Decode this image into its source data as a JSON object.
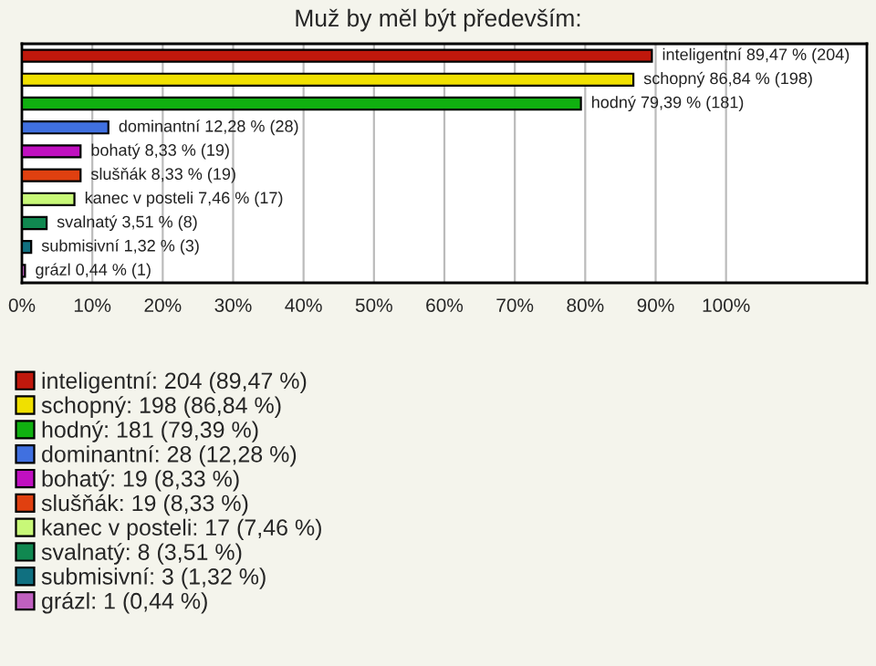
{
  "chart_data": {
    "type": "bar",
    "orientation": "horizontal",
    "title": "Muž by měl být především:",
    "categories": [
      null,
      null,
      null,
      null,
      null,
      null,
      null,
      null,
      null,
      null
    ],
    "series": [
      {
        "name": "inteligentní: 204 (89,47 %)",
        "color": "#c0180c",
        "values": [
          89.47,
          null,
          null,
          null,
          null,
          null,
          null,
          null,
          null,
          null
        ],
        "value_labels": [
          "inteligentní 89,47 % (204)",
          null,
          null,
          null,
          null,
          null,
          null,
          null,
          null,
          null
        ]
      },
      {
        "name": "schopný: 198 (86,84 %)",
        "color": "#f0e000",
        "values": [
          null,
          86.84,
          null,
          null,
          null,
          null,
          null,
          null,
          null,
          null
        ],
        "value_labels": [
          null,
          "schopný 86,84 % (198)",
          null,
          null,
          null,
          null,
          null,
          null,
          null,
          null
        ]
      },
      {
        "name": "hodný: 181 (79,39 %)",
        "color": "#10b010",
        "values": [
          null,
          null,
          79.39,
          null,
          null,
          null,
          null,
          null,
          null,
          null
        ],
        "value_labels": [
          null,
          null,
          "hodný 79,39 % (181)",
          null,
          null,
          null,
          null,
          null,
          null,
          null
        ]
      },
      {
        "name": "dominantní: 28 (12,28 %)",
        "color": "#4070e0",
        "values": [
          null,
          null,
          null,
          12.28,
          null,
          null,
          null,
          null,
          null,
          null
        ],
        "value_labels": [
          null,
          null,
          null,
          "dominantní 12,28 % (28)",
          null,
          null,
          null,
          null,
          null,
          null
        ]
      },
      {
        "name": "bohatý: 19 (8,33 %)",
        "color": "#c010c0",
        "values": [
          null,
          null,
          null,
          null,
          8.33,
          null,
          null,
          null,
          null,
          null
        ],
        "value_labels": [
          null,
          null,
          null,
          null,
          "bohatý 8,33 % (19)",
          null,
          null,
          null,
          null,
          null
        ]
      },
      {
        "name": "slušňák: 19 (8,33 %)",
        "color": "#e04010",
        "values": [
          null,
          null,
          null,
          null,
          null,
          8.33,
          null,
          null,
          null,
          null
        ],
        "value_labels": [
          null,
          null,
          null,
          null,
          null,
          "slušňák 8,33 % (19)",
          null,
          null,
          null,
          null
        ]
      },
      {
        "name": "kanec v posteli: 17 (7,46 %)",
        "color": "#c8f878",
        "values": [
          null,
          null,
          null,
          null,
          null,
          null,
          7.46,
          null,
          null,
          null
        ],
        "value_labels": [
          null,
          null,
          null,
          null,
          null,
          null,
          "kanec v posteli 7,46 % (17)",
          null,
          null,
          null
        ]
      },
      {
        "name": "svalnatý: 8 (3,51 %)",
        "color": "#108850",
        "values": [
          null,
          null,
          null,
          null,
          null,
          null,
          null,
          3.51,
          null,
          null
        ],
        "value_labels": [
          null,
          null,
          null,
          null,
          null,
          null,
          null,
          "svalnatý 3,51 % (8)",
          null,
          null
        ]
      },
      {
        "name": "submisivní: 3 (1,32 %)",
        "color": "#107080",
        "values": [
          null,
          null,
          null,
          null,
          null,
          null,
          null,
          null,
          1.32,
          null
        ],
        "value_labels": [
          null,
          null,
          null,
          null,
          null,
          null,
          null,
          null,
          "submisivní 1,32 % (3)",
          null
        ]
      },
      {
        "name": "grázl: 1 (0,44 %)",
        "color": "#c060c0",
        "values": [
          null,
          null,
          null,
          null,
          null,
          null,
          null,
          null,
          null,
          0.44
        ],
        "value_labels": [
          null,
          null,
          null,
          null,
          null,
          null,
          null,
          null,
          null,
          "grázl 0,44 % (1)"
        ]
      }
    ],
    "xlim": [
      0,
      120
    ],
    "xticks": [
      {
        "value": 0,
        "label": "0%"
      },
      {
        "value": 10,
        "label": "10%"
      },
      {
        "value": 20,
        "label": "20%"
      },
      {
        "value": 30,
        "label": "30%"
      },
      {
        "value": 40,
        "label": "40%"
      },
      {
        "value": 50,
        "label": "50%"
      },
      {
        "value": 60,
        "label": "60%"
      },
      {
        "value": 70,
        "label": "70%"
      },
      {
        "value": 80,
        "label": "80%"
      },
      {
        "value": 90,
        "label": "90%"
      },
      {
        "value": 100,
        "label": "100%"
      }
    ],
    "grid": "x",
    "legend": "bottom"
  }
}
